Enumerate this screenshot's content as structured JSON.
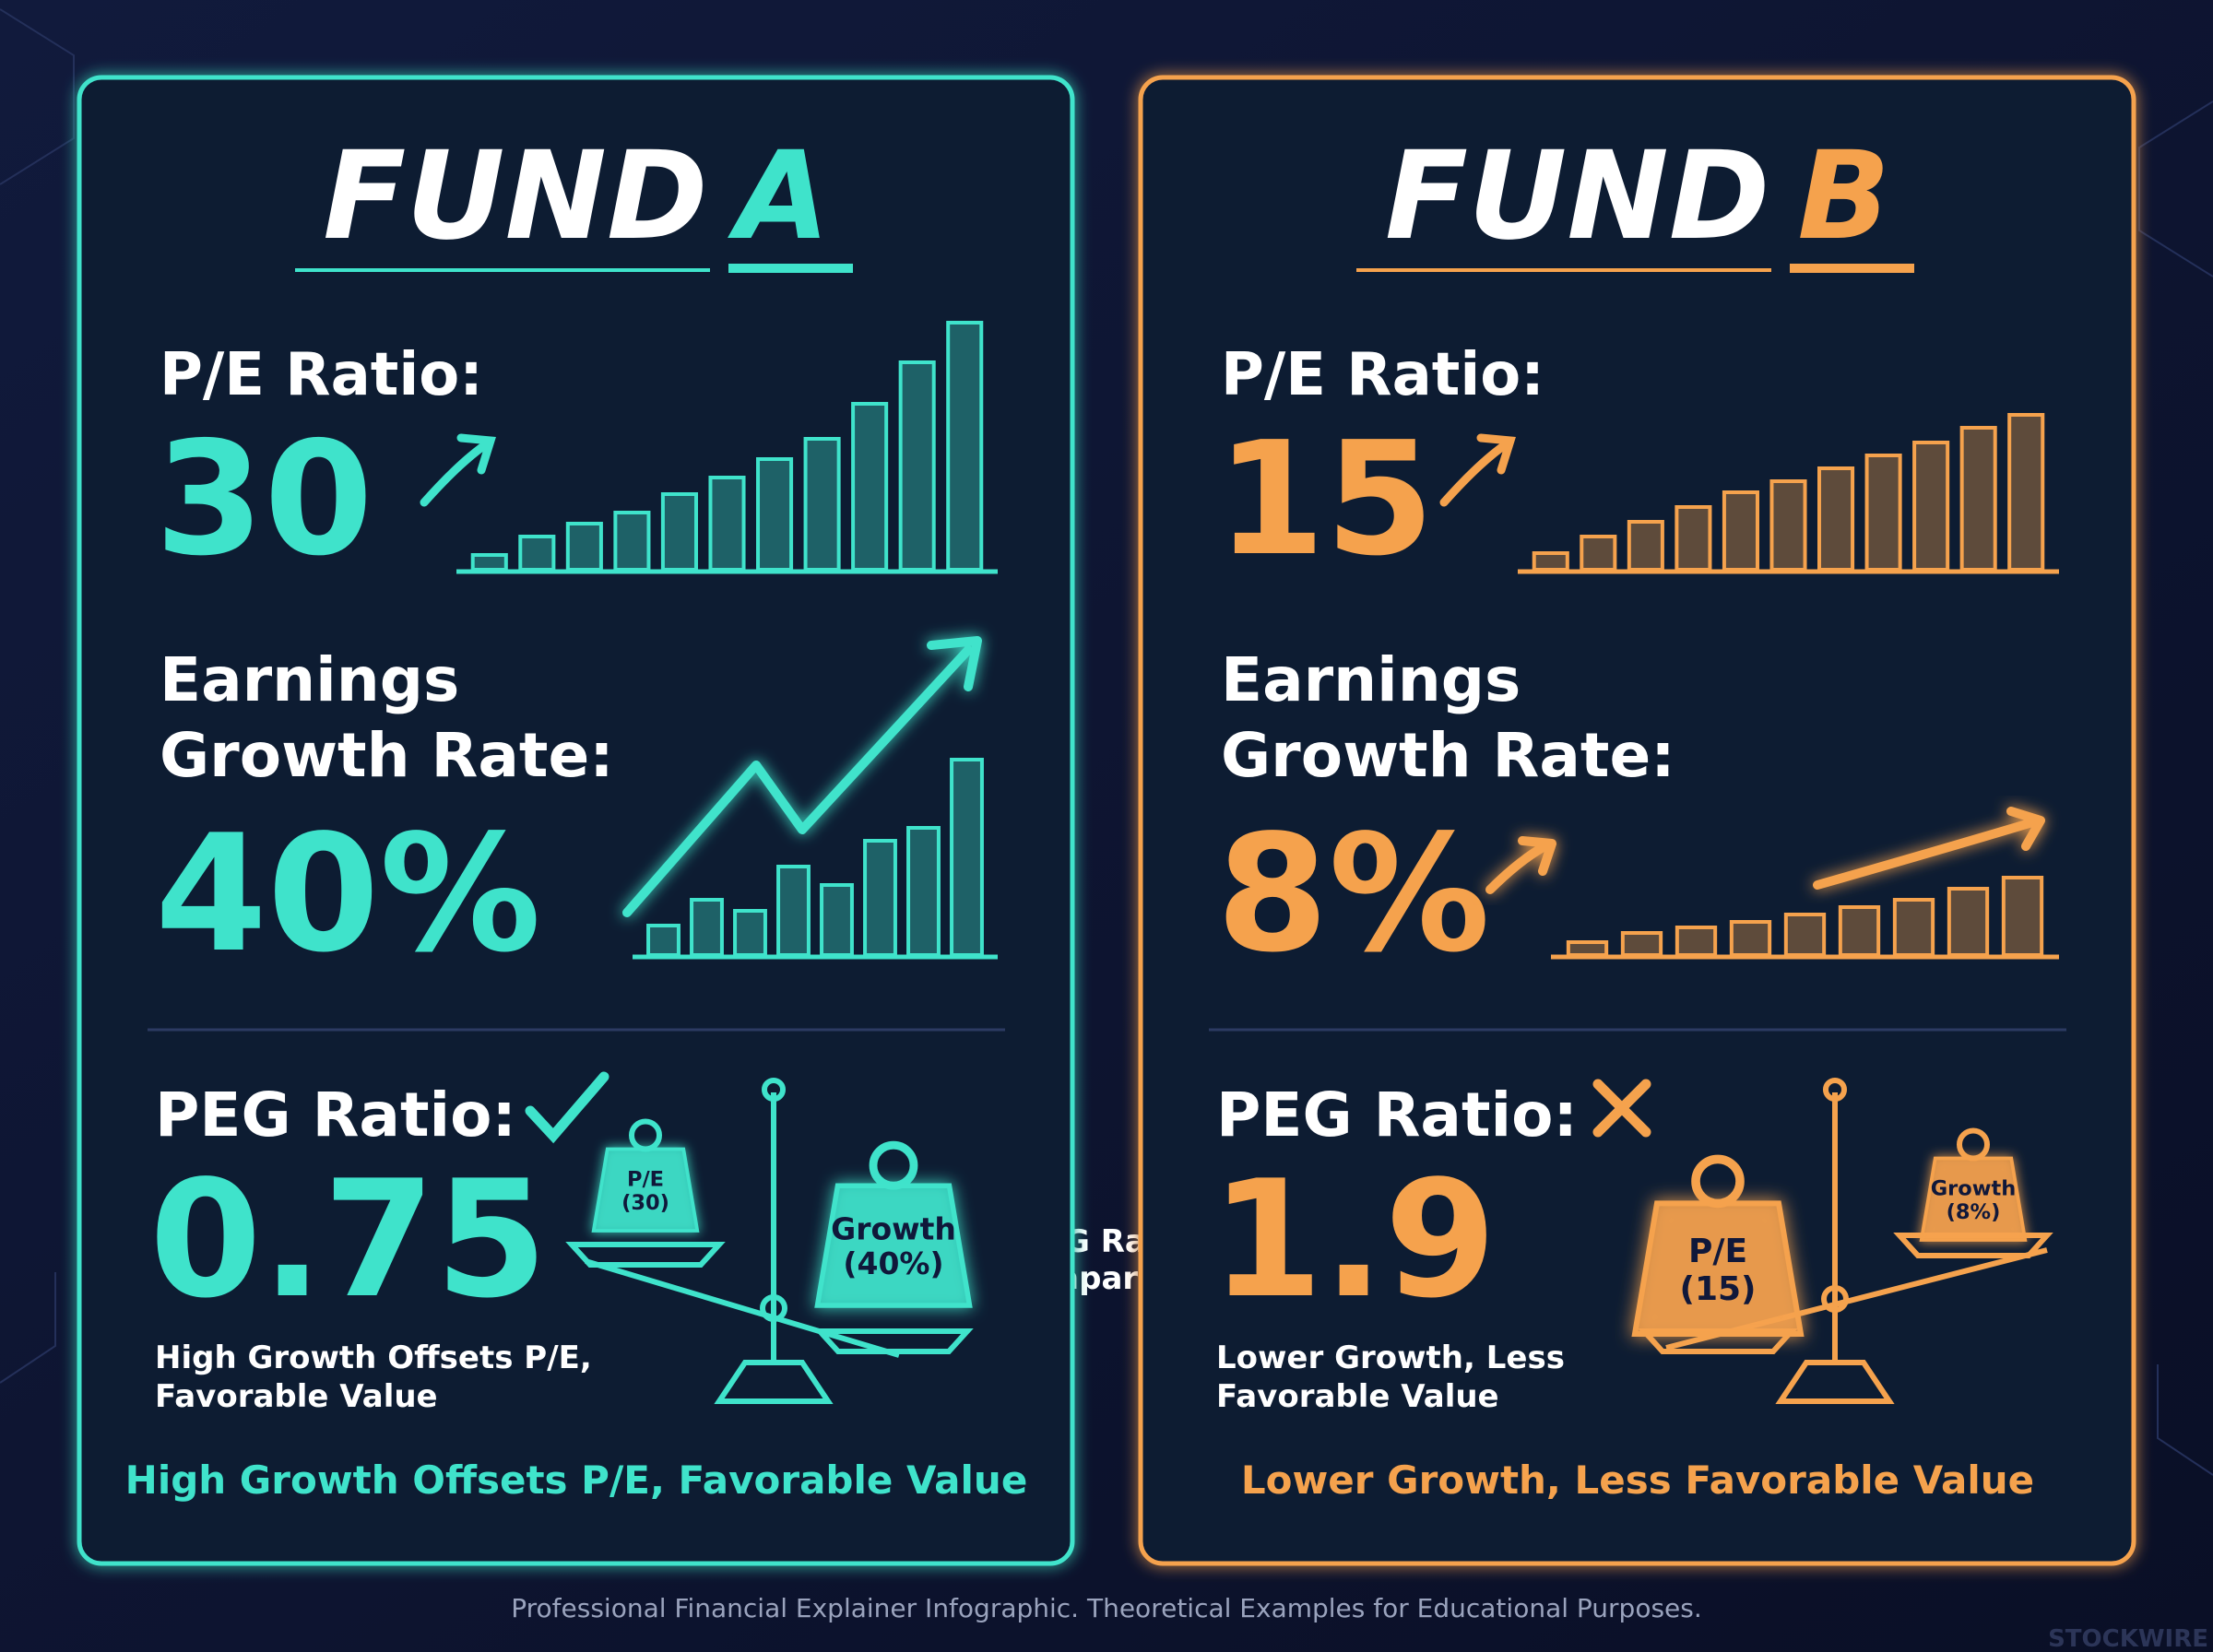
{
  "fund_a": {
    "title": {
      "word": "FUND",
      "letter": "A"
    },
    "pe_label": "P/E Ratio:",
    "pe_value": 30,
    "growth_label": [
      "Earnings",
      "Growth Rate:"
    ],
    "growth_value": "40%",
    "peg_label": "PEG Ratio:",
    "peg_value": 0.75,
    "peg_note": [
      "High Growth Offsets P/E,",
      "Favorable Value"
    ],
    "weights": [
      {
        "lines": [
          "P/E",
          "(30)"
        ]
      },
      {
        "lines": [
          "Growth",
          "(40%)"
        ]
      }
    ],
    "caption": "High Growth Offsets P/E, Favorable Value"
  },
  "fund_b": {
    "title": {
      "word": "FUND",
      "letter": "B"
    },
    "pe_label": "P/E Ratio:",
    "pe_value": 15,
    "growth_label": [
      "Earnings",
      "Growth Rate:"
    ],
    "growth_value": "8%",
    "peg_label": "PEG Ratio:",
    "peg_value": 1.9,
    "peg_note": [
      "Lower Growth, Less",
      "Favorable Value"
    ],
    "weights": [
      {
        "lines": [
          "P/E",
          "(15)"
        ]
      },
      {
        "lines": [
          "Growth",
          "(8%)"
        ]
      }
    ],
    "caption": "Lower Growth, Less Favorable Value"
  },
  "comparison": [
    "PEG Ratio",
    "Comparison"
  ],
  "footer": "Professional Financial Explainer Infographic. Theoretical Examples for Educational Purposes.",
  "watermark": "STOCKWIRE"
}
